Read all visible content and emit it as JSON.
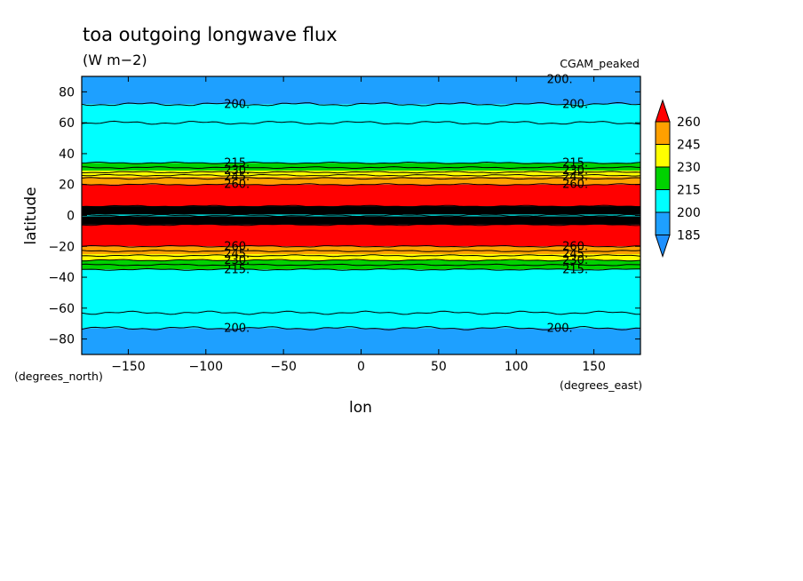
{
  "chart_data": {
    "type": "heatmap",
    "title": "toa outgoing longwave flux",
    "units": "(W m−2)",
    "dataset_label": "CGAM_peaked",
    "xlabel": "lon",
    "ylabel": "latitude",
    "x_units": "(degrees_east)",
    "y_units": "(degrees_north)",
    "xlim": [
      -180,
      180
    ],
    "ylim": [
      -90,
      90
    ],
    "x_ticks": [
      -150,
      -100,
      -50,
      0,
      50,
      100,
      150
    ],
    "y_ticks": [
      -80,
      -60,
      -40,
      -20,
      0,
      20,
      40,
      60,
      80
    ],
    "x_tick_labels": [
      "−150",
      "−100",
      "−50",
      "0",
      "50",
      "100",
      "150"
    ],
    "y_tick_labels": [
      "−80",
      "−60",
      "−40",
      "−20",
      "0",
      "20",
      "40",
      "60",
      "80"
    ],
    "colorbar": {
      "levels": [
        185,
        200,
        215,
        230,
        245,
        260
      ],
      "labels": [
        "185",
        "200",
        "215",
        "230",
        "245",
        "260"
      ],
      "colors": [
        "#1e90ff",
        "#1ea0ff",
        "#00ffff",
        "#00d200",
        "#ffff00",
        "#ffa000",
        "#ff0000"
      ]
    },
    "zonal_bands": [
      {
        "lat_min": 72,
        "lat_max": 90,
        "color": "#1ea0ff"
      },
      {
        "lat_min": 34,
        "lat_max": 72,
        "color": "#00ffff"
      },
      {
        "lat_min": 29,
        "lat_max": 34,
        "color": "#00d200"
      },
      {
        "lat_min": 25,
        "lat_max": 29,
        "color": "#ffff00"
      },
      {
        "lat_min": 20,
        "lat_max": 25,
        "color": "#ffa000"
      },
      {
        "lat_min": 6,
        "lat_max": 20,
        "color": "#ff0000"
      },
      {
        "lat_min": -6,
        "lat_max": 6,
        "color": "#000000"
      },
      {
        "lat_min": -20,
        "lat_max": -6,
        "color": "#ff0000"
      },
      {
        "lat_min": -25,
        "lat_max": -20,
        "color": "#ffa000"
      },
      {
        "lat_min": -29,
        "lat_max": -25,
        "color": "#ffff00"
      },
      {
        "lat_min": -35,
        "lat_max": -29,
        "color": "#00d200"
      },
      {
        "lat_min": -73,
        "lat_max": -35,
        "color": "#00ffff"
      },
      {
        "lat_min": -90,
        "lat_max": -73,
        "color": "#1ea0ff"
      }
    ],
    "contour_lines_lat": [
      72,
      60,
      34,
      31,
      28,
      26,
      24,
      20,
      6,
      3,
      0,
      -3,
      -6,
      -20,
      -23,
      -26,
      -29,
      -32,
      -35,
      -63,
      -73
    ],
    "contour_labels": [
      {
        "text": "200.",
        "lon": -80,
        "lat": 72
      },
      {
        "text": "200.",
        "lon": 138,
        "lat": 72
      },
      {
        "text": "200.",
        "lon": 128,
        "lat": 88
      },
      {
        "text": "215.",
        "lon": -80,
        "lat": 34
      },
      {
        "text": "215.",
        "lon": 138,
        "lat": 34
      },
      {
        "text": "230.",
        "lon": -80,
        "lat": 29
      },
      {
        "text": "230.",
        "lon": 138,
        "lat": 29
      },
      {
        "text": "245.",
        "lon": -80,
        "lat": 25
      },
      {
        "text": "245.",
        "lon": 138,
        "lat": 25
      },
      {
        "text": "260.",
        "lon": -80,
        "lat": 20
      },
      {
        "text": "260.",
        "lon": 138,
        "lat": 20
      },
      {
        "text": "260.",
        "lon": -80,
        "lat": -20
      },
      {
        "text": "260.",
        "lon": 138,
        "lat": -20
      },
      {
        "text": "245.",
        "lon": -80,
        "lat": -25
      },
      {
        "text": "245.",
        "lon": 138,
        "lat": -25
      },
      {
        "text": "230.",
        "lon": -80,
        "lat": -29
      },
      {
        "text": "230.",
        "lon": 138,
        "lat": -29
      },
      {
        "text": "215.",
        "lon": -80,
        "lat": -35
      },
      {
        "text": "215.",
        "lon": 138,
        "lat": -35
      },
      {
        "text": "200.",
        "lon": -80,
        "lat": -73
      },
      {
        "text": "200.",
        "lon": 128,
        "lat": -73
      }
    ],
    "grid": false,
    "legend": "right"
  }
}
